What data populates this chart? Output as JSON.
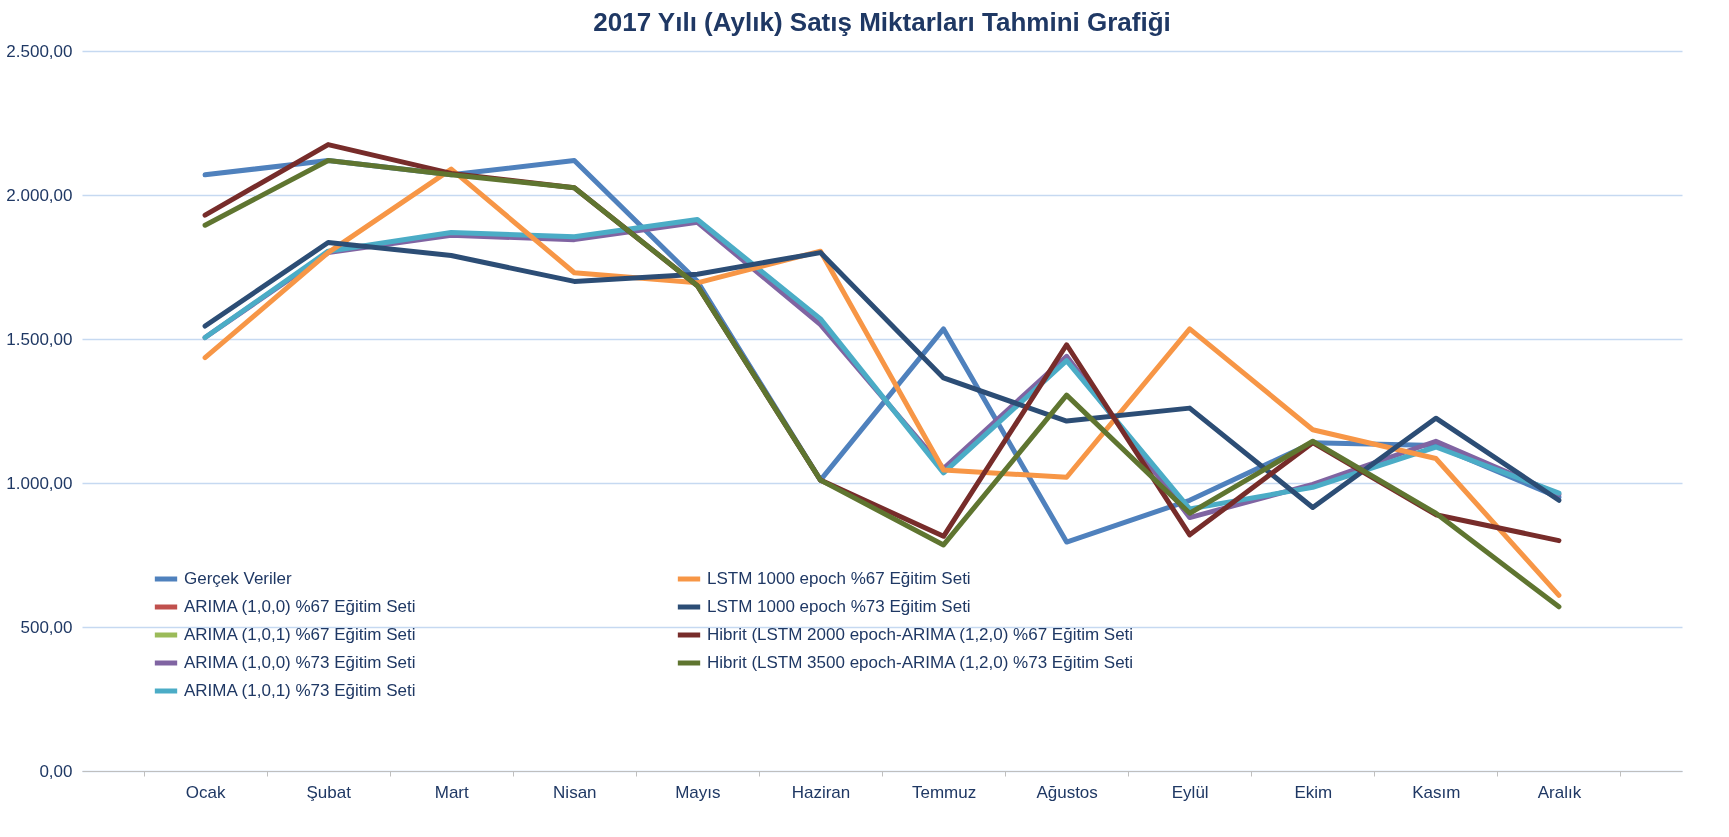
{
  "chart_data": {
    "type": "line",
    "title": "2017 Yılı (Aylık) Satış Miktarları Tahmini Grafiği",
    "categories": [
      "Ocak",
      "Şubat",
      "Mart",
      "Nisan",
      "Mayıs",
      "Haziran",
      "Temmuz",
      "Ağustos",
      "Eylül",
      "Ekim",
      "Kasım",
      "Aralık"
    ],
    "series": [
      {
        "name": "Gerçek Veriler",
        "color": "#4f81bd",
        "values": [
          2070,
          2120,
          2070,
          2120,
          1700,
          1010,
          1535,
          795,
          940,
          1140,
          1130,
          950
        ]
      },
      {
        "name": "ARIMA (1,0,0) %67 Eğitim Seti",
        "color": "#c0504d",
        "values": [
          null,
          null,
          null,
          null,
          null,
          null,
          null,
          null,
          null,
          null,
          null,
          null
        ]
      },
      {
        "name": "ARIMA (1,0,1) %67 Eğitim Seti",
        "color": "#9bbb59",
        "values": [
          null,
          null,
          null,
          null,
          null,
          null,
          null,
          null,
          null,
          null,
          null,
          null
        ]
      },
      {
        "name": "ARIMA (1,0,0) %73 Eğitim Seti",
        "color": "#8064a2",
        "values": [
          1505,
          1800,
          1860,
          1845,
          1905,
          1550,
          1050,
          1440,
          880,
          995,
          1145,
          960
        ]
      },
      {
        "name": "ARIMA (1,0,1) %73 Eğitim Seti",
        "color": "#4bacc6",
        "values": [
          1505,
          1805,
          1870,
          1855,
          1915,
          1570,
          1035,
          1425,
          910,
          985,
          1125,
          965
        ]
      },
      {
        "name": "LSTM 1000 epoch %67 Eğitim Seti",
        "color": "#f79646",
        "values": [
          1435,
          1800,
          2090,
          1730,
          1695,
          1805,
          1045,
          1020,
          1535,
          1185,
          1085,
          610
        ]
      },
      {
        "name": "LSTM 1000 epoch %73 Eğitim Seti",
        "color": "#2c4d75",
        "values": [
          1545,
          1835,
          1790,
          1700,
          1725,
          1800,
          1365,
          1215,
          1260,
          915,
          1225,
          940
        ]
      },
      {
        "name": "Hibrit (LSTM 2000 epoch-ARIMA (1,2,0) %67 Eğitim Seti",
        "color": "#772c2a",
        "values": [
          1930,
          2175,
          2075,
          2025,
          1685,
          1010,
          815,
          1480,
          820,
          1140,
          890,
          800
        ]
      },
      {
        "name": "Hibrit (LSTM 3500 epoch-ARIMA (1,2,0) %73 Eğitim Seti",
        "color": "#5f7530",
        "values": [
          1895,
          2120,
          2070,
          2025,
          1685,
          1010,
          785,
          1305,
          895,
          1145,
          895,
          570
        ]
      }
    ],
    "ylim": [
      0,
      2500
    ],
    "yticks": [
      {
        "value": 0,
        "label": "0,00"
      },
      {
        "value": 500,
        "label": "500,00"
      },
      {
        "value": 1000,
        "label": "1.000,00"
      },
      {
        "value": 1500,
        "label": "1.500,00"
      },
      {
        "value": 2000,
        "label": "2.000,00"
      },
      {
        "value": 2500,
        "label": "2.500,00"
      }
    ],
    "grid": "y",
    "legend": "bottom",
    "marker": "none",
    "line_style": "solid"
  }
}
